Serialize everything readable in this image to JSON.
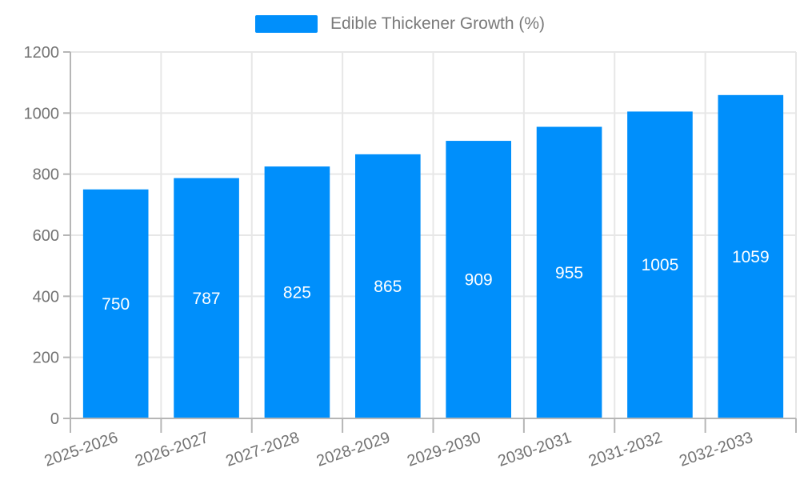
{
  "legend": {
    "label": "Edible Thickener Growth (%)"
  },
  "chart_data": {
    "type": "bar",
    "title": "Edible Thickener Growth (%)",
    "categories": [
      "2025-2026",
      "2026-2027",
      "2027-2028",
      "2028-2029",
      "2029-2030",
      "2030-2031",
      "2031-2032",
      "2032-2033"
    ],
    "values": [
      750,
      787,
      825,
      865,
      909,
      955,
      1005,
      1059
    ],
    "series": [
      {
        "name": "Edible Thickener Growth (%)",
        "values": [
          750,
          787,
          825,
          865,
          909,
          955,
          1005,
          1059
        ]
      }
    ],
    "xlabel": "",
    "ylabel": "",
    "ylim": [
      0,
      1200
    ],
    "ytick_step": 200,
    "ytick_labels": [
      "0",
      "200",
      "400",
      "600",
      "800",
      "1000",
      "1200"
    ],
    "grid": true,
    "legend_position": "top",
    "bar_color": "#008FFB",
    "value_label_color": "#ffffff",
    "axis_label_color": "#737373",
    "grid_color": "#e7e7e7",
    "axis_line_color": "#b6b6b6",
    "x_label_rotation": -19
  }
}
